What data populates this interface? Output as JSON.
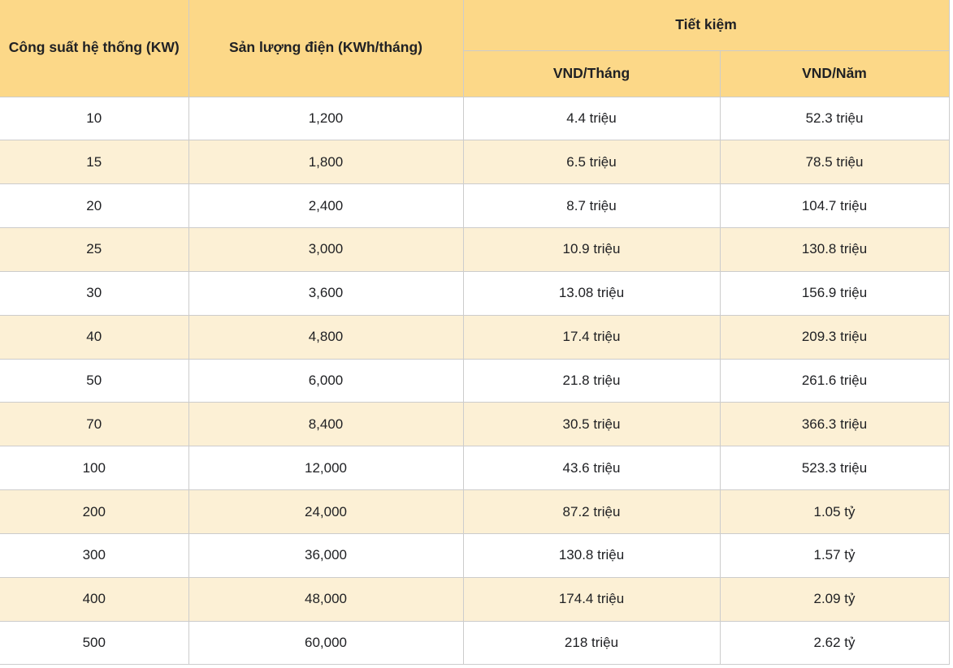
{
  "table": {
    "headers": {
      "col1": "Công suất hệ thống (KW)",
      "col2": "Sản lượng điện (KWh/tháng)",
      "group": "Tiết kiệm",
      "sub1": "VND/Tháng",
      "sub2": "VND/Năm"
    }
  },
  "colors": {
    "header_bg": "#fcd888",
    "row_bg": "#ffffff",
    "row_alt_bg": "#fcf0d5",
    "border": "#cccccc",
    "text": "#202124"
  },
  "chart_data": {
    "type": "table",
    "title": "",
    "columns": [
      "Công suất hệ thống (KW)",
      "Sản lượng điện (KWh/tháng)",
      "Tiết kiệm VND/Tháng",
      "Tiết kiệm VND/Năm"
    ],
    "rows": [
      [
        "10",
        "1,200",
        "4.4 triệu",
        "52.3 triệu"
      ],
      [
        "15",
        "1,800",
        "6.5 triệu",
        "78.5 triệu"
      ],
      [
        "20",
        "2,400",
        "8.7 triệu",
        "104.7 triệu"
      ],
      [
        "25",
        "3,000",
        "10.9 triệu",
        "130.8 triệu"
      ],
      [
        "30",
        "3,600",
        "13.08 triệu",
        "156.9 triệu"
      ],
      [
        "40",
        "4,800",
        "17.4 triệu",
        "209.3 triệu"
      ],
      [
        "50",
        "6,000",
        "21.8 triệu",
        "261.6 triệu"
      ],
      [
        "70",
        "8,400",
        "30.5 triệu",
        "366.3 triệu"
      ],
      [
        "100",
        "12,000",
        "43.6 triệu",
        "523.3 triệu"
      ],
      [
        "200",
        "24,000",
        "87.2 triệu",
        "1.05 tỷ"
      ],
      [
        "300",
        "36,000",
        "130.8 triệu",
        "1.57 tỷ"
      ],
      [
        "400",
        "48,000",
        "174.4 triệu",
        "2.09 tỷ"
      ],
      [
        "500",
        "60,000",
        "218 triệu",
        "2.62 tỷ"
      ]
    ]
  }
}
